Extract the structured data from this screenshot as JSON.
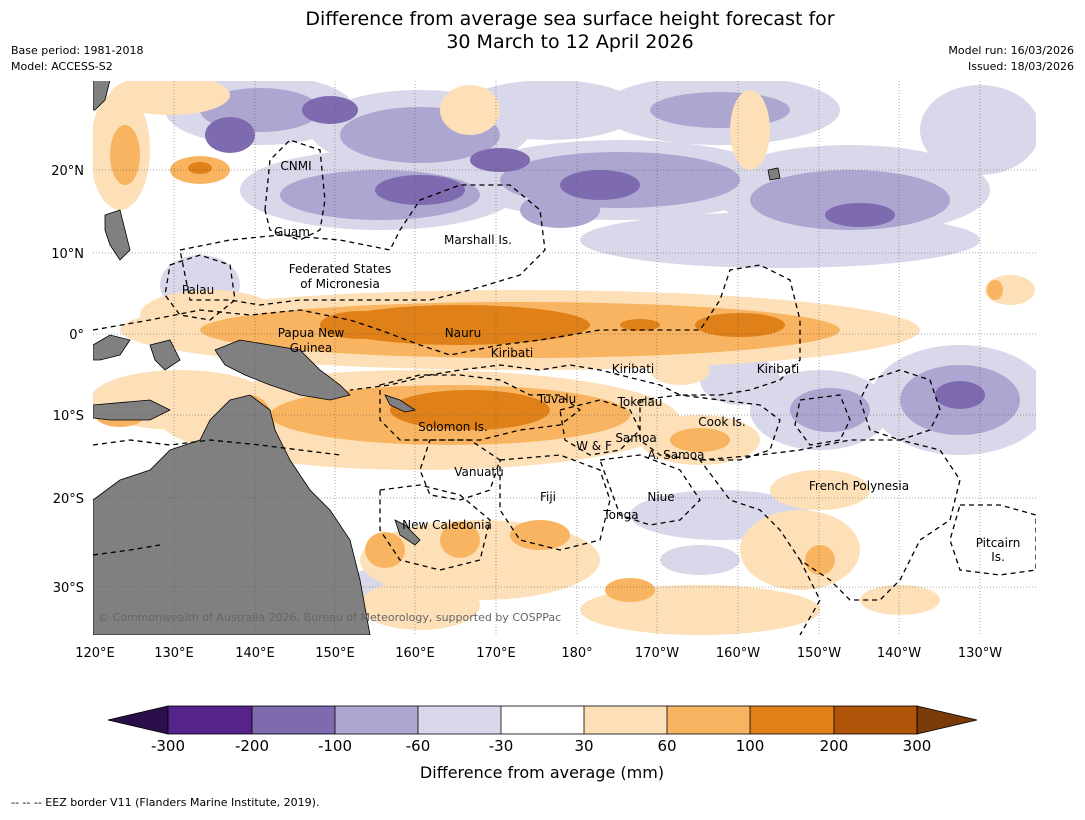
{
  "title": {
    "line1": "Difference from average sea surface height forecast for",
    "line2": "30 March to 12 April 2026"
  },
  "meta_left": {
    "base_period": "Base period: 1981-2018",
    "model": "Model: ACCESS-S2"
  },
  "meta_right": {
    "model_run": "Model run: 16/03/2026",
    "issued": "Issued: 18/03/2026"
  },
  "map": {
    "lat_labels": [
      "20°N",
      "10°N",
      "0°",
      "10°S",
      "20°S",
      "30°S"
    ],
    "lon_labels": [
      "120°E",
      "130°E",
      "140°E",
      "150°E",
      "160°E",
      "170°E",
      "180°",
      "170°W",
      "160°W",
      "150°W",
      "140°W",
      "130°W"
    ],
    "regions": [
      "CNMI",
      "Guam",
      "Marshall Is.",
      "Federated States",
      "of Micronesia",
      "Palau",
      "Papua New",
      "Guinea",
      "Nauru",
      "Kiribati",
      "Kiribati",
      "Kiribati",
      "Tuvalu",
      "Tokelau",
      "Cook Is.",
      "Solomon Is.",
      "Samoa",
      "W & F",
      "A. Samoa",
      "Vanuatu",
      "Fiji",
      "Niue",
      "French Polynesia",
      "Tonga",
      "New Caledonia",
      "Pitcairn",
      "Is."
    ],
    "copyright": "© Commonwealth of Australia 2026, Bureau of Meteorology, supported by COSPPac"
  },
  "colorbar": {
    "ticks": [
      "-300",
      "-200",
      "-100",
      "-60",
      "-30",
      "30",
      "60",
      "100",
      "200",
      "300"
    ],
    "label": "Difference from average (mm)",
    "colors": {
      "below": "#2b0f4a",
      "b1": "#55238a",
      "b2": "#7e6aae",
      "b3": "#aca6d0",
      "b4": "#d8d8ea",
      "neutral": "#ffffff",
      "o1": "#fde0b8",
      "o2": "#f8b460",
      "o3": "#e08018",
      "o4": "#b0540a",
      "above": "#7a3a0a"
    }
  },
  "footnote": "--  --  -- EEZ border V11 (Flanders Marine Institute, 2019)."
}
